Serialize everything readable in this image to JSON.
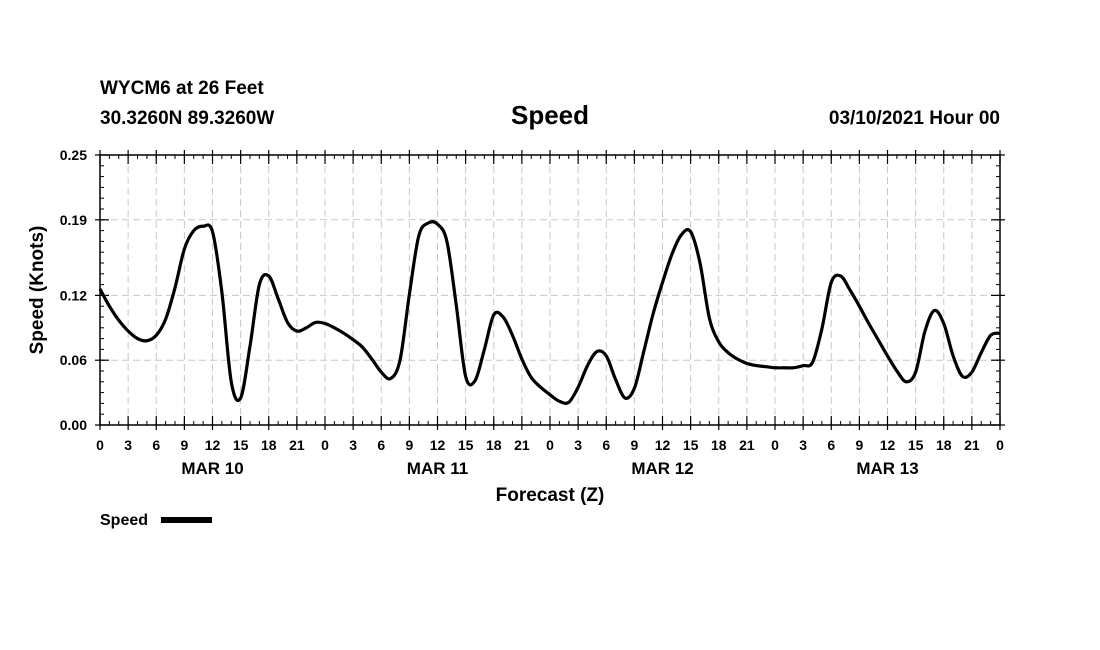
{
  "header": {
    "station": "WYCM6 at 26 Feet",
    "coords": "30.3260N 89.3260W",
    "title": "Speed",
    "date": "03/10/2021 Hour 00"
  },
  "legend": {
    "label": "Speed"
  },
  "colors": {
    "line": "#000000",
    "grid": "#c8c8c8",
    "background": "#ffffff"
  },
  "chart_data": {
    "type": "line",
    "title": "Speed",
    "xlabel": "Forecast (Z)",
    "ylabel": "Speed (Knots)",
    "xlim": [
      0,
      96
    ],
    "ylim": [
      0,
      0.25
    ],
    "y_ticks": [
      0.0,
      0.06,
      0.12,
      0.19,
      0.25
    ],
    "y_tick_labels": [
      "0.00",
      "0.06",
      "0.12",
      "0.19",
      "0.25"
    ],
    "x_ticks": [
      0,
      3,
      6,
      9,
      12,
      15,
      18,
      21,
      24,
      27,
      30,
      33,
      36,
      39,
      42,
      45,
      48,
      51,
      54,
      57,
      60,
      63,
      66,
      69,
      72,
      75,
      78,
      81,
      84,
      87,
      90,
      93,
      96
    ],
    "x_tick_labels": [
      "0",
      "3",
      "6",
      "9",
      "12",
      "15",
      "18",
      "21",
      "0",
      "3",
      "6",
      "9",
      "12",
      "15",
      "18",
      "21",
      "0",
      "3",
      "6",
      "9",
      "12",
      "15",
      "18",
      "21",
      "0",
      "3",
      "6",
      "9",
      "12",
      "15",
      "18",
      "21",
      "0"
    ],
    "day_labels": [
      {
        "hour": 12,
        "label": "MAR 10"
      },
      {
        "hour": 36,
        "label": "MAR 11"
      },
      {
        "hour": 60,
        "label": "MAR 12"
      },
      {
        "hour": 84,
        "label": "MAR 13"
      }
    ],
    "grid": true,
    "legend_position": "bottom-left",
    "series": [
      {
        "name": "Speed",
        "x": [
          0,
          1,
          2,
          3,
          4,
          5,
          6,
          7,
          8,
          9,
          10,
          11,
          12,
          13,
          14,
          15,
          16,
          17,
          18,
          19,
          20,
          21,
          22,
          23,
          24,
          25,
          26,
          27,
          28,
          29,
          30,
          31,
          32,
          33,
          34,
          35,
          36,
          37,
          38,
          39,
          40,
          41,
          42,
          43,
          44,
          45,
          46,
          47,
          48,
          49,
          50,
          51,
          52,
          53,
          54,
          55,
          56,
          57,
          58,
          59,
          60,
          61,
          62,
          63,
          64,
          65,
          66,
          67,
          68,
          69,
          70,
          71,
          72,
          73,
          74,
          75,
          76,
          77,
          78,
          79,
          80,
          81,
          82,
          83,
          84,
          85,
          86,
          87,
          88,
          89,
          90,
          91,
          92,
          93,
          94,
          95,
          96
        ],
        "values": [
          0.126,
          0.11,
          0.097,
          0.087,
          0.08,
          0.078,
          0.083,
          0.098,
          0.127,
          0.163,
          0.18,
          0.184,
          0.179,
          0.123,
          0.04,
          0.025,
          0.073,
          0.13,
          0.138,
          0.117,
          0.095,
          0.087,
          0.09,
          0.095,
          0.094,
          0.09,
          0.085,
          0.079,
          0.072,
          0.061,
          0.049,
          0.043,
          0.06,
          0.121,
          0.175,
          0.187,
          0.186,
          0.17,
          0.111,
          0.045,
          0.041,
          0.07,
          0.102,
          0.1,
          0.083,
          0.061,
          0.044,
          0.035,
          0.028,
          0.022,
          0.021,
          0.035,
          0.055,
          0.068,
          0.064,
          0.042,
          0.025,
          0.034,
          0.068,
          0.103,
          0.132,
          0.158,
          0.176,
          0.179,
          0.15,
          0.099,
          0.077,
          0.067,
          0.061,
          0.057,
          0.055,
          0.054,
          0.053,
          0.053,
          0.053,
          0.055,
          0.058,
          0.089,
          0.132,
          0.138,
          0.125,
          0.11,
          0.094,
          0.079,
          0.064,
          0.05,
          0.04,
          0.049,
          0.087,
          0.106,
          0.094,
          0.064,
          0.045,
          0.049,
          0.067,
          0.083,
          0.085
        ]
      }
    ]
  }
}
